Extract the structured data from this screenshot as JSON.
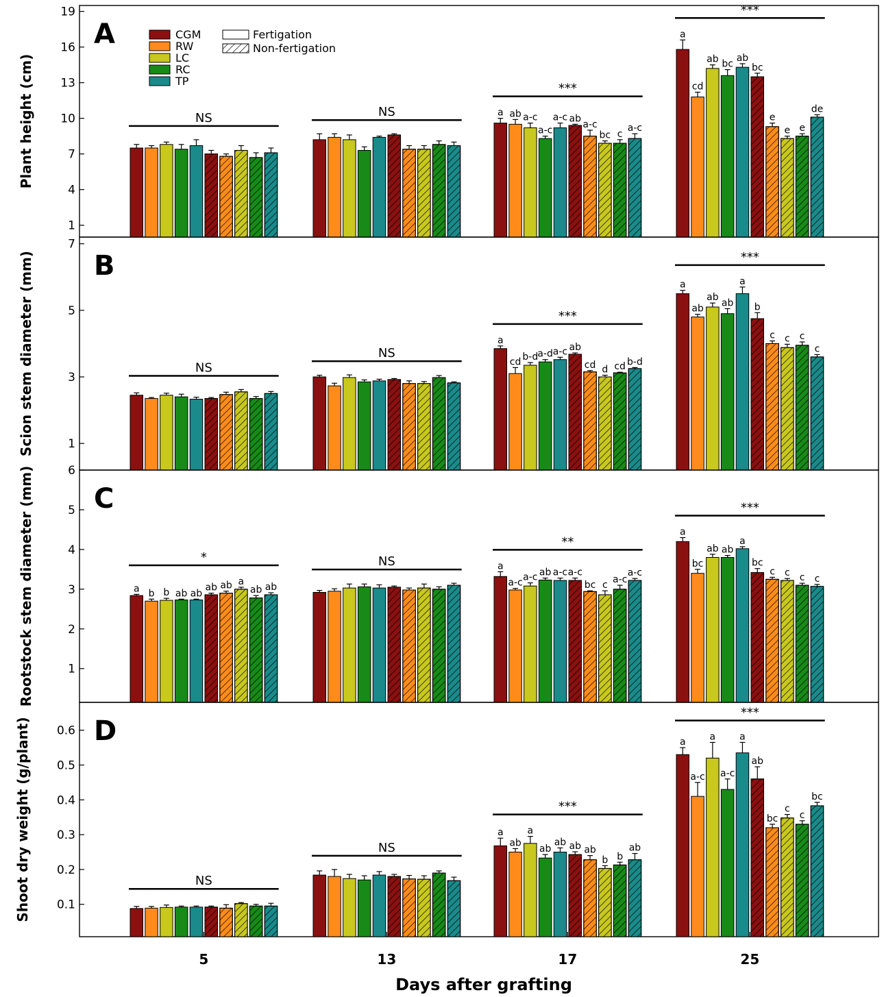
{
  "figure": {
    "xlabel": "Days after grafting",
    "days": [
      "5",
      "13",
      "17",
      "25"
    ],
    "legend": {
      "genotypes": [
        "CGM",
        "RW",
        "LC",
        "RC",
        "TP"
      ],
      "treatments": [
        "Fertigation",
        "Non-fertigation"
      ]
    },
    "colors": {
      "CGM": "#8B1010",
      "RW": "#FF8C1A",
      "LC": "#C8C81E",
      "RC": "#188A18",
      "TP": "#1A8A8A"
    }
  },
  "chart_data": [
    {
      "type": "bar",
      "panel": "A",
      "ylabel": "Plant height (cm)",
      "ylim": [
        0,
        19.5
      ],
      "yticks": [
        1,
        4,
        7,
        10,
        13,
        16,
        19
      ],
      "series_order": [
        "CGM-F",
        "RW-F",
        "LC-F",
        "RC-F",
        "TP-F",
        "CGM-NF",
        "RW-NF",
        "LC-NF",
        "RC-NF",
        "TP-NF"
      ],
      "groups": [
        {
          "day": "5",
          "sig": "NS",
          "values": [
            7.5,
            7.5,
            7.8,
            7.4,
            7.7,
            7.0,
            6.8,
            7.3,
            6.7,
            7.1
          ],
          "errors": [
            0.3,
            0.2,
            0.2,
            0.4,
            0.5,
            0.3,
            0.2,
            0.4,
            0.4,
            0.4
          ],
          "letters": [
            "",
            "",
            "",
            "",
            "",
            "",
            "",
            "",
            "",
            ""
          ]
        },
        {
          "day": "13",
          "sig": "NS",
          "values": [
            8.2,
            8.4,
            8.2,
            7.3,
            8.4,
            8.6,
            7.4,
            7.4,
            7.8,
            7.7
          ],
          "errors": [
            0.5,
            0.3,
            0.4,
            0.3,
            0.1,
            0.1,
            0.3,
            0.3,
            0.3,
            0.3
          ],
          "letters": [
            "",
            "",
            "",
            "",
            "",
            "",
            "",
            "",
            "",
            ""
          ]
        },
        {
          "day": "17",
          "sig": "***",
          "values": [
            9.6,
            9.5,
            9.2,
            8.3,
            9.2,
            9.4,
            8.5,
            7.9,
            7.9,
            8.3
          ],
          "errors": [
            0.4,
            0.4,
            0.4,
            0.2,
            0.4,
            0.1,
            0.5,
            0.2,
            0.3,
            0.4
          ],
          "letters": [
            "a",
            "ab",
            "a-c",
            "a-c",
            "a-c",
            "ab",
            "a-c",
            "bc",
            "c",
            "a-c"
          ]
        },
        {
          "day": "25",
          "sig": "***",
          "values": [
            15.8,
            11.8,
            14.2,
            13.6,
            14.3,
            13.5,
            9.3,
            8.3,
            8.5,
            10.1
          ],
          "errors": [
            0.8,
            0.4,
            0.3,
            0.5,
            0.3,
            0.3,
            0.3,
            0.2,
            0.2,
            0.2
          ],
          "letters": [
            "a",
            "cd",
            "ab",
            "bc",
            "ab",
            "bc",
            "e",
            "e",
            "e",
            "de"
          ]
        }
      ]
    },
    {
      "type": "bar",
      "panel": "B",
      "ylabel": "Scion stem diameter (mm)",
      "ylim": [
        0.2,
        7.2
      ],
      "yticks": [
        1,
        3,
        5,
        7
      ],
      "series_order": [
        "CGM-F",
        "RW-F",
        "LC-F",
        "RC-F",
        "TP-F",
        "CGM-NF",
        "RW-NF",
        "LC-NF",
        "RC-NF",
        "TP-NF"
      ],
      "groups": [
        {
          "day": "5",
          "sig": "NS",
          "values": [
            2.45,
            2.35,
            2.45,
            2.4,
            2.33,
            2.35,
            2.47,
            2.55,
            2.35,
            2.5
          ],
          "errors": [
            0.07,
            0.03,
            0.06,
            0.08,
            0.06,
            0.03,
            0.07,
            0.07,
            0.06,
            0.06
          ],
          "letters": [
            "",
            "",
            "",
            "",
            "",
            "",
            "",
            "",
            "",
            ""
          ]
        },
        {
          "day": "13",
          "sig": "NS",
          "values": [
            3.0,
            2.73,
            2.98,
            2.85,
            2.88,
            2.92,
            2.8,
            2.8,
            2.98,
            2.82
          ],
          "errors": [
            0.05,
            0.08,
            0.08,
            0.06,
            0.05,
            0.03,
            0.08,
            0.06,
            0.06,
            0.03
          ],
          "letters": [
            "",
            "",
            "",
            "",
            "",
            "",
            "",
            "",
            "",
            ""
          ]
        },
        {
          "day": "17",
          "sig": "***",
          "values": [
            3.85,
            3.1,
            3.35,
            3.45,
            3.52,
            3.68,
            3.15,
            3.0,
            3.12,
            3.25
          ],
          "errors": [
            0.08,
            0.18,
            0.08,
            0.07,
            0.07,
            0.04,
            0.04,
            0.05,
            0.02,
            0.03
          ],
          "letters": [
            "a",
            "cd",
            "b-d",
            "a-d",
            "a-c",
            "ab",
            "cd",
            "d",
            "cd",
            "b-d"
          ]
        },
        {
          "day": "25",
          "sig": "***",
          "values": [
            5.5,
            4.8,
            5.1,
            4.9,
            5.5,
            4.75,
            4.0,
            3.88,
            3.95,
            3.6
          ],
          "errors": [
            0.1,
            0.08,
            0.12,
            0.15,
            0.2,
            0.18,
            0.08,
            0.1,
            0.1,
            0.07
          ],
          "letters": [
            "a",
            "ab",
            "ab",
            "ab",
            "a",
            "b",
            "c",
            "c",
            "c",
            "c"
          ]
        }
      ]
    },
    {
      "type": "bar",
      "panel": "C",
      "ylabel": "Rootstock stem diameter (mm)",
      "ylim": [
        0.15,
        6
      ],
      "yticks": [
        1,
        2,
        3,
        4,
        5,
        6
      ],
      "series_order": [
        "CGM-F",
        "RW-F",
        "LC-F",
        "RC-F",
        "TP-F",
        "CGM-NF",
        "RW-NF",
        "LC-NF",
        "RC-NF",
        "TP-NF"
      ],
      "groups": [
        {
          "day": "5",
          "sig": "*",
          "values": [
            2.84,
            2.7,
            2.72,
            2.73,
            2.73,
            2.86,
            2.9,
            3.0,
            2.78,
            2.86
          ],
          "errors": [
            0.03,
            0.05,
            0.05,
            0.02,
            0.02,
            0.04,
            0.05,
            0.05,
            0.06,
            0.05
          ],
          "letters": [
            "a",
            "b",
            "b",
            "ab",
            "ab",
            "ab",
            "ab",
            "a",
            "ab",
            "ab"
          ]
        },
        {
          "day": "13",
          "sig": "NS",
          "values": [
            2.92,
            2.95,
            3.03,
            3.06,
            3.03,
            3.05,
            2.98,
            3.03,
            3.0,
            3.1
          ],
          "errors": [
            0.05,
            0.06,
            0.1,
            0.07,
            0.08,
            0.03,
            0.05,
            0.1,
            0.06,
            0.05
          ],
          "letters": [
            "",
            "",
            "",
            "",
            "",
            "",
            "",
            "",
            "",
            ""
          ]
        },
        {
          "day": "17",
          "sig": "**",
          "values": [
            3.32,
            2.98,
            3.08,
            3.23,
            3.22,
            3.22,
            2.94,
            2.86,
            3.0,
            3.22
          ],
          "errors": [
            0.12,
            0.04,
            0.08,
            0.05,
            0.06,
            0.06,
            0.02,
            0.1,
            0.1,
            0.05
          ],
          "letters": [
            "a",
            "a-c",
            "a-c",
            "ab",
            "a-c",
            "a-c",
            "bc",
            "c",
            "a-c",
            "a-c"
          ]
        },
        {
          "day": "25",
          "sig": "***",
          "values": [
            4.2,
            3.4,
            3.8,
            3.8,
            4.02,
            3.42,
            3.25,
            3.22,
            3.1,
            3.07
          ],
          "errors": [
            0.1,
            0.1,
            0.08,
            0.05,
            0.05,
            0.1,
            0.05,
            0.05,
            0.05,
            0.05
          ],
          "letters": [
            "a",
            "bc",
            "ab",
            "ab",
            "a",
            "bc",
            "c",
            "c",
            "c",
            "c"
          ]
        }
      ]
    },
    {
      "type": "bar",
      "panel": "D",
      "ylabel": "Shoot dry weight (g/plant)",
      "ylim": [
        0.007,
        0.68
      ],
      "yticks": [
        0.1,
        0.2,
        0.3,
        0.4,
        0.5,
        0.6
      ],
      "series_order": [
        "CGM-F",
        "RW-F",
        "LC-F",
        "RC-F",
        "TP-F",
        "CGM-NF",
        "RW-NF",
        "LC-NF",
        "RC-NF",
        "TP-NF"
      ],
      "groups": [
        {
          "day": "5",
          "sig": "NS",
          "values": [
            0.088,
            0.089,
            0.091,
            0.092,
            0.092,
            0.092,
            0.089,
            0.102,
            0.095,
            0.095
          ],
          "errors": [
            0.006,
            0.005,
            0.007,
            0.003,
            0.003,
            0.003,
            0.01,
            0.003,
            0.005,
            0.008
          ],
          "letters": [
            "",
            "",
            "",
            "",
            "",
            "",
            "",
            "",
            "",
            ""
          ]
        },
        {
          "day": "13",
          "sig": "NS",
          "values": [
            0.184,
            0.18,
            0.174,
            0.17,
            0.184,
            0.18,
            0.173,
            0.172,
            0.19,
            0.168
          ],
          "errors": [
            0.012,
            0.02,
            0.012,
            0.012,
            0.01,
            0.006,
            0.01,
            0.01,
            0.006,
            0.01
          ],
          "letters": [
            "",
            "",
            "",
            "",
            "",
            "",
            "",
            "",
            "",
            ""
          ]
        },
        {
          "day": "17",
          "sig": "***",
          "values": [
            0.268,
            0.25,
            0.275,
            0.233,
            0.25,
            0.243,
            0.228,
            0.203,
            0.213,
            0.228
          ],
          "errors": [
            0.022,
            0.01,
            0.02,
            0.01,
            0.012,
            0.008,
            0.012,
            0.008,
            0.008,
            0.018
          ],
          "letters": [
            "a",
            "ab",
            "a",
            "ab",
            "ab",
            "ab",
            "ab",
            "b",
            "b",
            "ab"
          ]
        },
        {
          "day": "25",
          "sig": "***",
          "values": [
            0.53,
            0.41,
            0.52,
            0.43,
            0.535,
            0.46,
            0.32,
            0.348,
            0.33,
            0.383
          ],
          "errors": [
            0.02,
            0.04,
            0.045,
            0.03,
            0.03,
            0.035,
            0.01,
            0.01,
            0.01,
            0.01
          ],
          "letters": [
            "a",
            "a-c",
            "a",
            "a-c",
            "a",
            "ab",
            "bc",
            "c",
            "c",
            "bc"
          ]
        }
      ]
    }
  ]
}
